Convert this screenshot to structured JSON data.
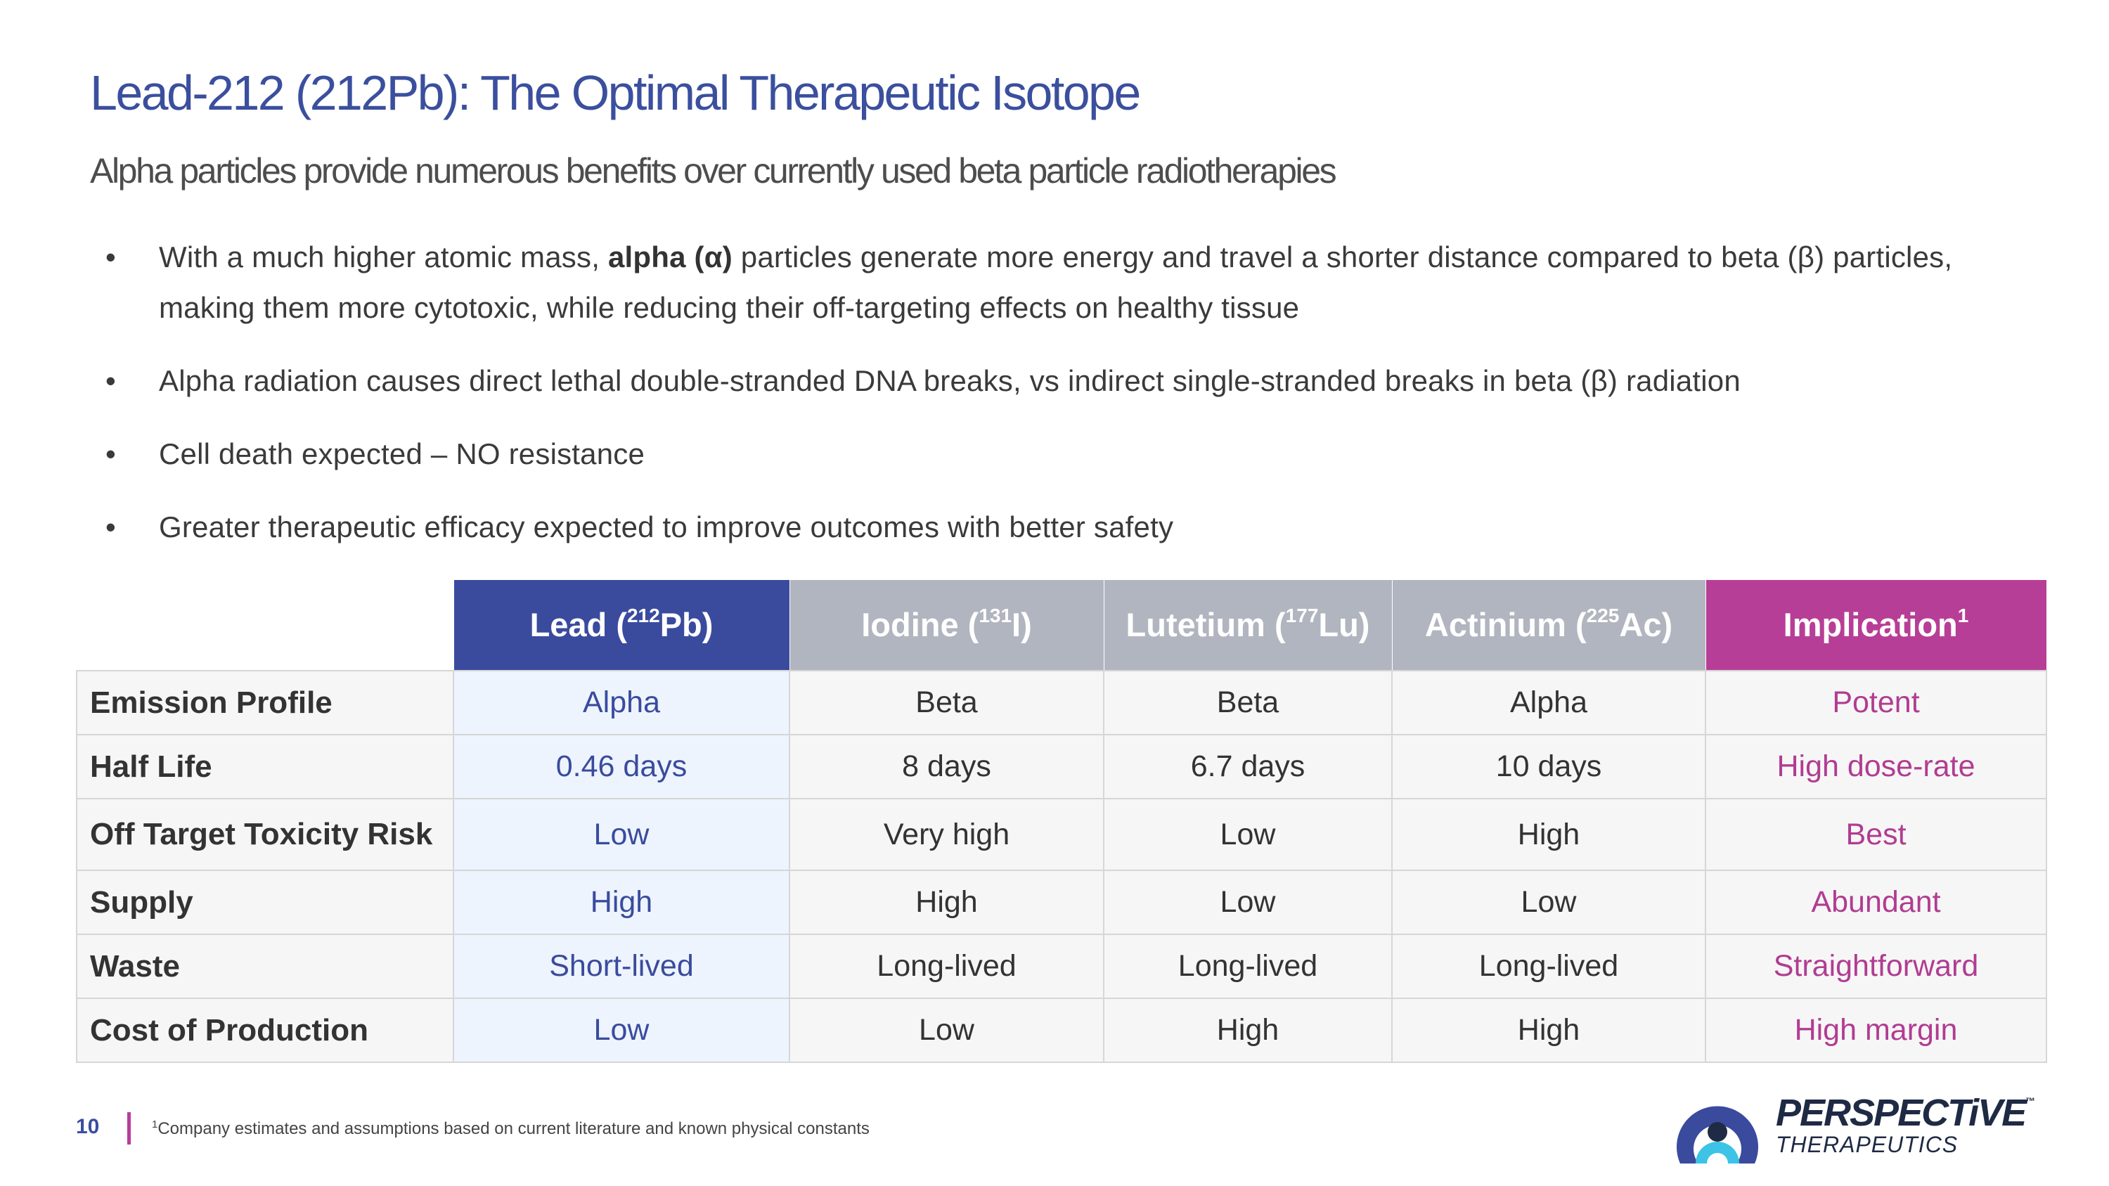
{
  "slide": {
    "title": "Lead-212 (212Pb): The Optimal Therapeutic Isotope",
    "subtitle": "Alpha particles provide numerous benefits over currently used beta particle radiotherapies"
  },
  "bullets": [
    {
      "prefix": "With a much higher atomic mass, ",
      "bold": "alpha (α)",
      "suffix": " particles generate more energy and travel a shorter distance compared to beta (β) particles, making them more cytotoxic, while reducing their off-targeting effects on healthy tissue"
    },
    {
      "text": "Alpha radiation causes direct lethal double-stranded DNA breaks, vs indirect single-stranded breaks in beta (β) radiation"
    },
    {
      "text": "Cell death expected – NO resistance"
    },
    {
      "text": "Greater therapeutic efficacy expected to improve outcomes with better safety"
    }
  ],
  "table": {
    "headers": [
      {
        "name": "Lead (",
        "sup": "212",
        "tail": "Pb)"
      },
      {
        "name": "Iodine (",
        "sup": "131",
        "tail": "I)"
      },
      {
        "name": "Lutetium (",
        "sup": "177",
        "tail": "Lu)"
      },
      {
        "name": "Actinium (",
        "sup": "225",
        "tail": "Ac)"
      },
      {
        "name": "Implication",
        "sup": "1",
        "tail": ""
      }
    ],
    "rows": [
      {
        "label": "Emission Profile",
        "values": [
          "Alpha",
          "Beta",
          "Beta",
          "Alpha",
          "Potent"
        ]
      },
      {
        "label": "Half Life",
        "values": [
          "0.46 days",
          "8 days",
          "6.7 days",
          "10 days",
          "High dose-rate"
        ]
      },
      {
        "label": "Off Target Toxicity Risk",
        "values": [
          "Low",
          "Very high",
          "Low",
          "High",
          "Best"
        ]
      },
      {
        "label": "Supply",
        "values": [
          "High",
          "High",
          "Low",
          "Low",
          "Abundant"
        ]
      },
      {
        "label": "Waste",
        "values": [
          "Short-lived",
          "Long-lived",
          "Long-lived",
          "Long-lived",
          "Straightforward"
        ]
      },
      {
        "label": "Cost of Production",
        "values": [
          "Low",
          "Low",
          "High",
          "High",
          "High margin"
        ]
      }
    ]
  },
  "footer": {
    "page_number": "10",
    "footnote_mark": "1",
    "footnote": "Company estimates and assumptions based on current literature and known physical constants"
  },
  "logo": {
    "wordmark": "PERSPECTiVE",
    "trademark": "™",
    "tagline": "THERAPEUTICS",
    "colors": {
      "navy": "#1f2a44",
      "blue": "#3a4b9e",
      "cyan": "#3cc3e6"
    }
  },
  "colors": {
    "title": "#3b4f9e",
    "lead_header": "#3a4b9e",
    "gray_header": "#b1b5bf",
    "implication_header": "#b73e97",
    "lead_cell_bg": "#eef4fd",
    "implication_text": "#b13c92"
  }
}
